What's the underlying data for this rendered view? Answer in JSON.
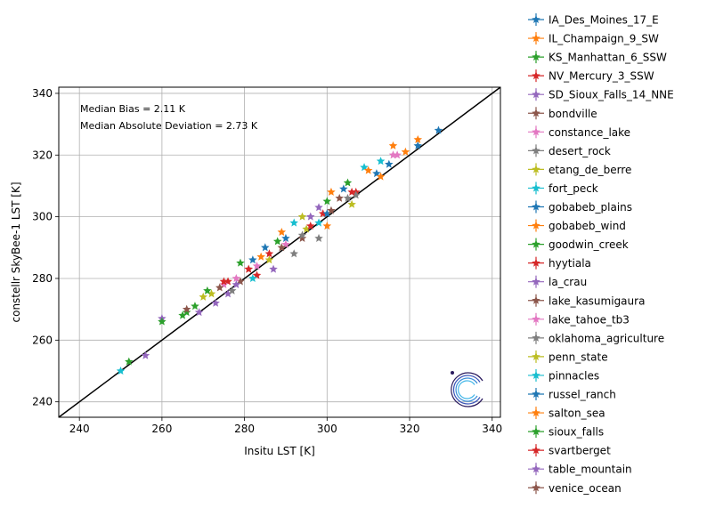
{
  "chart_data": {
    "type": "scatter",
    "xlabel": "Insitu LST [K]",
    "ylabel": "constellr SkyBee-1 LST [K]",
    "xlim": [
      235,
      342
    ],
    "ylim": [
      235,
      342
    ],
    "x_ticks": [
      240,
      260,
      280,
      300,
      320,
      340
    ],
    "y_ticks": [
      240,
      260,
      280,
      300,
      320,
      340
    ],
    "grid": true,
    "legend_position": "outside-right",
    "marker": "star",
    "identity_line": {
      "from": [
        235,
        235
      ],
      "to": [
        342,
        342
      ],
      "color": "#000000"
    },
    "annotations": [
      "Median Bias = 2.11 K",
      "Median Absolute Deviation = 2.73 K"
    ],
    "series": [
      {
        "name": "IA_Des_Moines_17_E",
        "color": "#1f77b4",
        "points": [
          [
            327,
            328
          ],
          [
            322,
            323
          ],
          [
            315,
            317
          ]
        ]
      },
      {
        "name": "IL_Champaign_9_SW",
        "color": "#ff7f0e",
        "points": [
          [
            322,
            325
          ],
          [
            319,
            321
          ],
          [
            316,
            323
          ]
        ]
      },
      {
        "name": "KS_Manhattan_6_SSW",
        "color": "#2ca02c",
        "points": [
          [
            265,
            268
          ],
          [
            266,
            269
          ],
          [
            268,
            271
          ],
          [
            252,
            253
          ]
        ]
      },
      {
        "name": "NV_Mercury_3_SSW",
        "color": "#d62728",
        "points": [
          [
            307,
            308
          ],
          [
            299,
            301
          ],
          [
            286,
            288
          ]
        ]
      },
      {
        "name": "SD_Sioux_Falls_14_NNE",
        "color": "#9467bd",
        "points": [
          [
            273,
            272
          ],
          [
            276,
            275
          ],
          [
            256,
            255
          ]
        ]
      },
      {
        "name": "bondville",
        "color": "#8c564b",
        "points": [
          [
            294,
            293
          ],
          [
            279,
            279
          ]
        ]
      },
      {
        "name": "constance_lake",
        "color": "#e377c2",
        "points": [
          [
            278,
            280
          ],
          [
            283,
            284
          ],
          [
            316,
            320
          ]
        ]
      },
      {
        "name": "desert_rock",
        "color": "#7f7f7f",
        "points": [
          [
            292,
            288
          ],
          [
            298,
            293
          ],
          [
            305,
            306
          ]
        ]
      },
      {
        "name": "etang_de_berre",
        "color": "#bcbd22",
        "points": [
          [
            270,
            274
          ],
          [
            295,
            296
          ],
          [
            306,
            304
          ]
        ]
      },
      {
        "name": "fort_peck",
        "color": "#17becf",
        "points": [
          [
            250,
            250
          ],
          [
            309,
            316
          ],
          [
            298,
            298
          ]
        ]
      },
      {
        "name": "gobabeb_plains",
        "color": "#1f77b4",
        "points": [
          [
            290,
            293
          ],
          [
            304,
            309
          ],
          [
            285,
            290
          ]
        ]
      },
      {
        "name": "gobabeb_wind",
        "color": "#ff7f0e",
        "points": [
          [
            300,
            297
          ],
          [
            310,
            315
          ],
          [
            289,
            295
          ]
        ]
      },
      {
        "name": "goodwin_creek",
        "color": "#2ca02c",
        "points": [
          [
            279,
            285
          ],
          [
            288,
            292
          ],
          [
            305,
            311
          ]
        ]
      },
      {
        "name": "hyytiala",
        "color": "#d62728",
        "points": [
          [
            276,
            279
          ],
          [
            283,
            281
          ],
          [
            296,
            297
          ]
        ]
      },
      {
        "name": "la_crau",
        "color": "#9467bd",
        "points": [
          [
            260,
            267
          ],
          [
            287,
            283
          ],
          [
            298,
            303
          ]
        ]
      },
      {
        "name": "lake_kasumigaura",
        "color": "#8c564b",
        "points": [
          [
            266,
            270
          ],
          [
            281,
            283
          ],
          [
            303,
            306
          ]
        ]
      },
      {
        "name": "lake_tahoe_tb3",
        "color": "#e377c2",
        "points": [
          [
            275,
            278
          ],
          [
            290,
            291
          ],
          [
            317,
            320
          ]
        ]
      },
      {
        "name": "oklahoma_agriculture",
        "color": "#7f7f7f",
        "points": [
          [
            277,
            276
          ],
          [
            294,
            294
          ],
          [
            307,
            307
          ]
        ]
      },
      {
        "name": "penn_state",
        "color": "#bcbd22",
        "points": [
          [
            272,
            275
          ],
          [
            294,
            300
          ],
          [
            286,
            286
          ]
        ]
      },
      {
        "name": "pinnacles",
        "color": "#17becf",
        "points": [
          [
            292,
            298
          ],
          [
            313,
            318
          ],
          [
            282,
            280
          ]
        ]
      },
      {
        "name": "russel_ranch",
        "color": "#1f77b4",
        "points": [
          [
            282,
            286
          ],
          [
            300,
            301
          ],
          [
            312,
            314
          ]
        ]
      },
      {
        "name": "salton_sea",
        "color": "#ff7f0e",
        "points": [
          [
            301,
            308
          ],
          [
            313,
            313
          ],
          [
            284,
            287
          ]
        ]
      },
      {
        "name": "sioux_falls",
        "color": "#2ca02c",
        "points": [
          [
            260,
            266
          ],
          [
            271,
            276
          ],
          [
            300,
            305
          ]
        ]
      },
      {
        "name": "svartberget",
        "color": "#d62728",
        "points": [
          [
            275,
            279
          ],
          [
            281,
            283
          ],
          [
            306,
            308
          ]
        ]
      },
      {
        "name": "table_mountain",
        "color": "#9467bd",
        "points": [
          [
            269,
            269
          ],
          [
            278,
            278
          ],
          [
            296,
            300
          ]
        ]
      },
      {
        "name": "venice_ocean",
        "color": "#8c564b",
        "points": [
          [
            274,
            277
          ],
          [
            289,
            290
          ],
          [
            301,
            302
          ]
        ]
      }
    ]
  }
}
